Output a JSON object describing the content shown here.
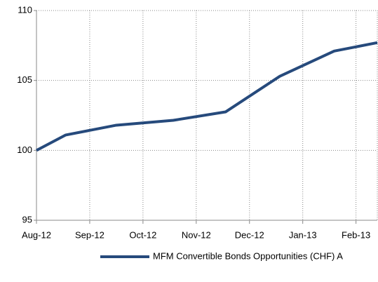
{
  "chart_data": {
    "type": "line",
    "x": [
      0,
      0.55,
      1.5,
      2.57,
      3.55,
      4.57,
      5.59,
      6.4
    ],
    "series": [
      {
        "name": "MFM Convertible Bonds Opportunities (CHF) A",
        "color": "#264a7c",
        "values": [
          100,
          101.1,
          101.8,
          102.15,
          102.75,
          105.3,
          107.1,
          107.7
        ]
      }
    ],
    "xlim": [
      0,
      6.4
    ],
    "xticks": [
      {
        "value": 0,
        "label": "Aug-12"
      },
      {
        "value": 1,
        "label": "Sep-12"
      },
      {
        "value": 2,
        "label": "Oct-12"
      },
      {
        "value": 3,
        "label": "Nov-12"
      },
      {
        "value": 4,
        "label": "Dec-12"
      },
      {
        "value": 5,
        "label": "Jan-13"
      },
      {
        "value": 6,
        "label": "Feb-13"
      }
    ],
    "ylim": [
      95,
      110
    ],
    "yticks": [
      95,
      100,
      105,
      110
    ],
    "grid": true,
    "legend": "bottom"
  }
}
